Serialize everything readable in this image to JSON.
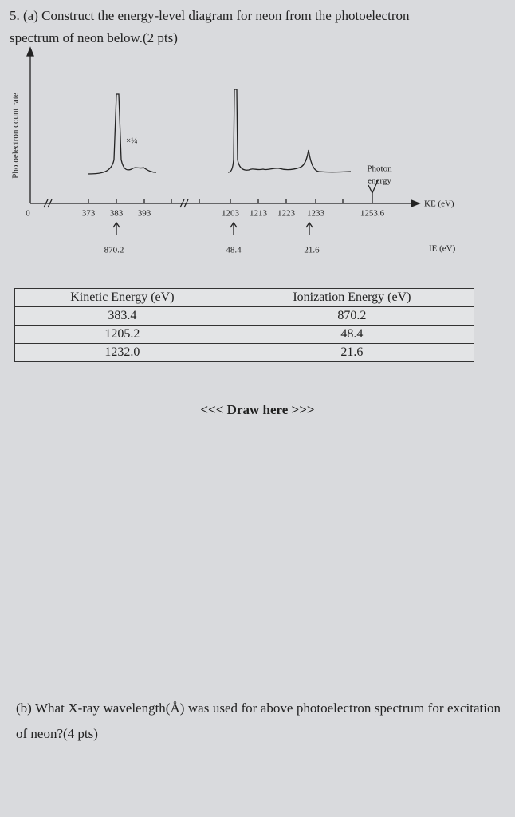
{
  "question_a": "5. (a) Construct the energy-level diagram for neon from the photoelectron spectrum of neon below.(2 pts)",
  "spectrum": {
    "y_label": "Photoelectron count rate",
    "origin": "0",
    "ke_ticks": [
      "373",
      "383",
      "393",
      "1203",
      "1213",
      "1223",
      "1233"
    ],
    "photon_label": [
      "Photon",
      "energy"
    ],
    "photon_value": "1253.6",
    "x_label": "KE (eV)",
    "scale_note": "×¼",
    "ie_values": [
      "870.2",
      "48.4",
      "21.6"
    ],
    "ie_label": "IE (eV)"
  },
  "table": {
    "header": [
      "Kinetic Energy (eV)",
      "Ionization Energy (eV)"
    ],
    "rows": [
      [
        "383.4",
        "870.2"
      ],
      [
        "1205.2",
        "48.4"
      ],
      [
        "1232.0",
        "21.6"
      ]
    ]
  },
  "draw_here": "<<< Draw here >>>",
  "question_b": "(b) What X-ray wavelength(Å) was used for above photoelectron spectrum for excitation of neon?(4 pts)"
}
